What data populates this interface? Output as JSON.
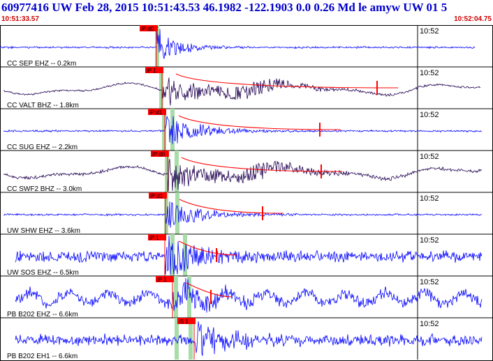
{
  "header": {
    "title": "60977416 UW Feb 28, 2015 10:51:43.53   46.1982 -122.1903  0.0 0.26 Md le amyw UW 01   5",
    "start_time": "10:51:33.57",
    "end_time": "10:52:04.75"
  },
  "colors": {
    "trace_blue": "#0000ff",
    "trace_dark": "#200050",
    "pick_red": "#ff0000",
    "window_green": "#a8dca8",
    "grid": "#000000"
  },
  "time_marker": "10:52",
  "traces": [
    {
      "label": "CC SEP EHZ -- 0.2km",
      "pick": "iP:d0",
      "color": "blue"
    },
    {
      "label": "CC VALT BHZ -- 1.8km",
      "pick": "iP 1",
      "color": "dark"
    },
    {
      "label": "CC SUG EHZ -- 2.2km",
      "pick": "iP:d1",
      "color": "blue"
    },
    {
      "label": "CC SWF2 BHZ -- 3.0km",
      "pick": "iP:d0",
      "color": "dark"
    },
    {
      "label": "UW SHW EHZ -- 3.6km",
      "pick": "iP:d1",
      "color": "blue"
    },
    {
      "label": "UW SOS EHZ -- 6.5km",
      "pick": "iP 1",
      "color": "blue"
    },
    {
      "label": "PB B202 EHZ -- 6.6km",
      "pick": "iP 1",
      "color": "blue"
    },
    {
      "label": "PB B202 EH1 -- 6.6km",
      "pick": "iS 1",
      "color": "blue"
    }
  ]
}
